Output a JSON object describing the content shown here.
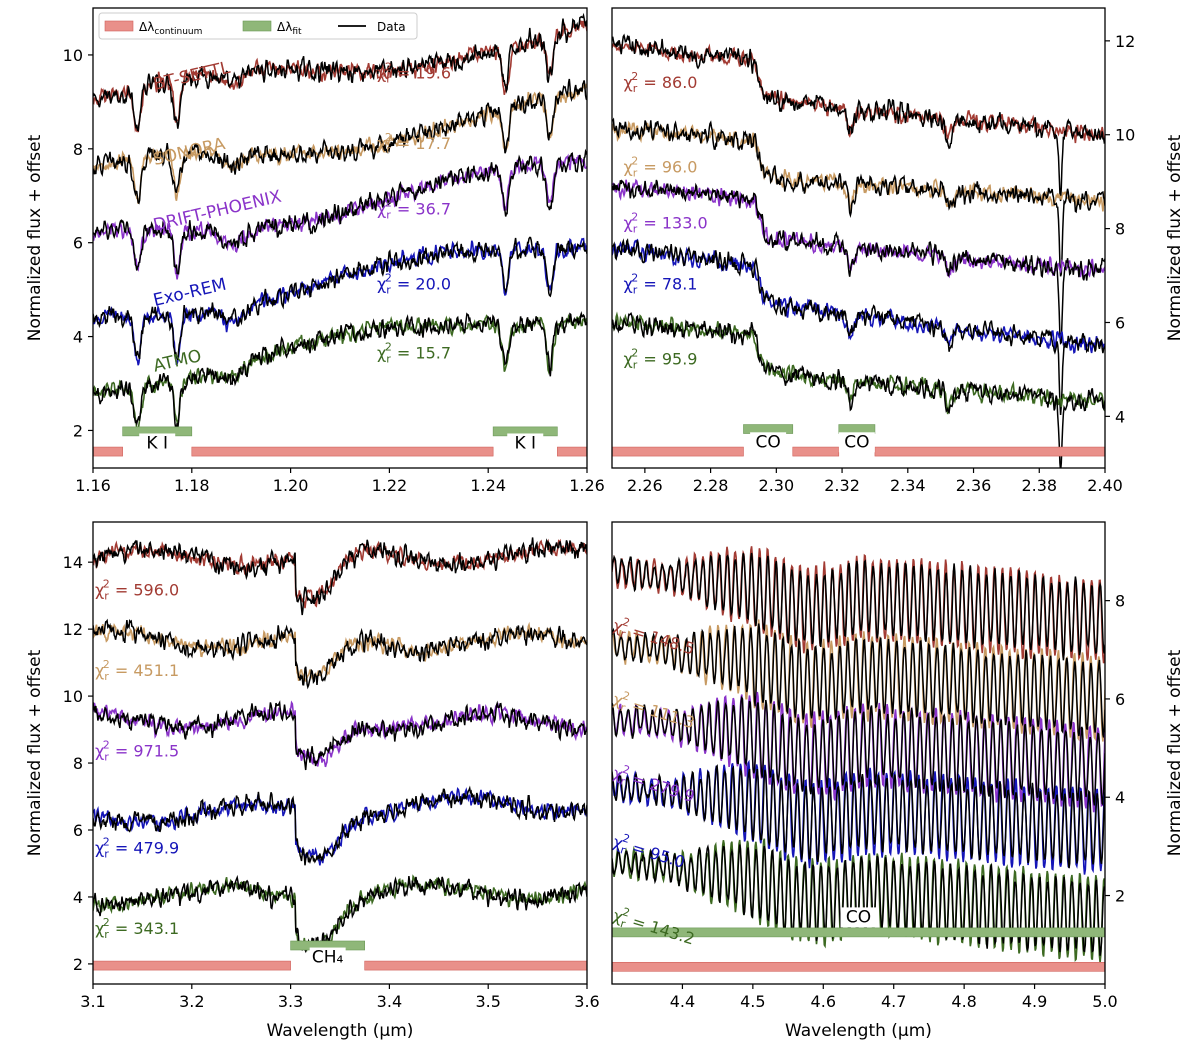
{
  "colors": {
    "data": "#000000",
    "BT-SETTL": "#a23b33",
    "SONORA": "#c79a62",
    "DRIFT-PHOENIX": "#8a33c9",
    "Exo-REM": "#1515b8",
    "ATMO": "#3d6a22",
    "continuum": "#e9908a",
    "fit": "#8fb779"
  },
  "legend": {
    "continuum": "Δλ",
    "continuum_sub": "continuum",
    "fit": "Δλ",
    "fit_sub": "fit",
    "data": "Data"
  },
  "chart_data": [
    {
      "type": "line",
      "panel": "top-left",
      "xlim": [
        1.16,
        1.26
      ],
      "ylim": [
        1.2,
        11.0
      ],
      "xticks": [
        "1.16",
        "1.18",
        "1.20",
        "1.22",
        "1.24",
        "1.26"
      ],
      "yticks": [
        "2",
        "4",
        "6",
        "8",
        "10"
      ],
      "ylabel": "Normalized flux + offset",
      "xlabel": "",
      "y_axis_side": "left",
      "legend_position": "top-left",
      "series": [
        {
          "name": "BT-SETTL",
          "model_label": "BT-SETTL",
          "chi2": "19.6",
          "baseline": [
            9.0,
            10.5
          ]
        },
        {
          "name": "SONORA",
          "model_label": "SONORA",
          "chi2": "17.7",
          "baseline": [
            7.4,
            9.0
          ]
        },
        {
          "name": "DRIFT-PHOENIX",
          "model_label": "DRIFT-PHOENIX",
          "chi2": "36.7",
          "baseline": [
            6.0,
            7.6
          ]
        },
        {
          "name": "Exo-REM",
          "model_label": "Exo-REM",
          "chi2": "20.0",
          "baseline": [
            4.4,
            6.0
          ]
        },
        {
          "name": "ATMO",
          "model_label": "ATMO",
          "chi2": "15.7",
          "baseline": [
            3.0,
            4.6
          ]
        }
      ],
      "absorption_lines": [
        1.169,
        1.177,
        1.2435,
        1.2525
      ],
      "continuum_ranges": [
        [
          1.16,
          1.166
        ],
        [
          1.18,
          1.241
        ],
        [
          1.254,
          1.26
        ]
      ],
      "fit_ranges": [
        [
          1.166,
          1.18
        ],
        [
          1.241,
          1.254
        ]
      ],
      "features": [
        "K I",
        "K I"
      ]
    },
    {
      "type": "line",
      "panel": "top-right",
      "xlim": [
        2.25,
        2.4
      ],
      "ylim": [
        2.9,
        12.7
      ],
      "xticks": [
        "2.26",
        "2.28",
        "2.30",
        "2.32",
        "2.34",
        "2.36",
        "2.38",
        "2.40"
      ],
      "yticks": [
        "4",
        "6",
        "8",
        "10",
        "12"
      ],
      "ylabel": "Normalized flux + offset",
      "xlabel": "",
      "y_axis_side": "right",
      "series": [
        {
          "name": "BT-SETTL",
          "chi2": "86.0",
          "baseline": [
            11.9,
            10.8
          ]
        },
        {
          "name": "SONORA",
          "chi2": "96.0",
          "baseline": [
            10.1,
            9.4
          ]
        },
        {
          "name": "DRIFT-PHOENIX",
          "chi2": "133.0",
          "baseline": [
            8.9,
            7.9
          ]
        },
        {
          "name": "Exo-REM",
          "chi2": "78.1",
          "baseline": [
            7.6,
            6.3
          ]
        },
        {
          "name": "ATMO",
          "chi2": "95.9",
          "baseline": [
            6.0,
            5.1
          ]
        }
      ],
      "bandhead": 2.2935,
      "continuum_ranges": [
        [
          2.25,
          2.29
        ],
        [
          2.305,
          2.319
        ],
        [
          2.33,
          2.4
        ]
      ],
      "fit_ranges": [
        [
          2.29,
          2.305
        ],
        [
          2.319,
          2.33
        ]
      ],
      "features": [
        "CO",
        "CO"
      ]
    },
    {
      "type": "line",
      "panel": "bottom-left",
      "xlim": [
        3.1,
        3.6
      ],
      "ylim": [
        1.4,
        15.2
      ],
      "xticks": [
        "3.1",
        "3.2",
        "3.3",
        "3.4",
        "3.5",
        "3.6"
      ],
      "yticks": [
        "2",
        "4",
        "6",
        "8",
        "10",
        "12",
        "14"
      ],
      "ylabel": "Normalized flux + offset",
      "xlabel": "Wavelength (µm)",
      "y_axis_side": "left",
      "series": [
        {
          "name": "BT-SETTL",
          "chi2": "596.0",
          "baseline": [
            14.1,
            14.2
          ]
        },
        {
          "name": "SONORA",
          "chi2": "451.1",
          "baseline": [
            11.7,
            11.6
          ]
        },
        {
          "name": "DRIFT-PHOENIX",
          "chi2": "971.5",
          "baseline": [
            9.3,
            9.2
          ]
        },
        {
          "name": "Exo-REM",
          "chi2": "479.9",
          "baseline": [
            6.4,
            6.8
          ]
        },
        {
          "name": "ATMO",
          "chi2": "343.1",
          "baseline": [
            4.0,
            4.2
          ]
        }
      ],
      "dip_center": 3.325,
      "continuum_ranges": [
        [
          3.1,
          3.3
        ],
        [
          3.375,
          3.6
        ]
      ],
      "fit_ranges": [
        [
          3.3,
          3.375
        ]
      ],
      "features": [
        "CH₄"
      ]
    },
    {
      "type": "line",
      "panel": "bottom-right",
      "xlim": [
        4.3,
        5.0
      ],
      "ylim": [
        0.2,
        9.6
      ],
      "xticks": [
        "4.4",
        "4.5",
        "4.6",
        "4.7",
        "4.8",
        "4.9",
        "5.0"
      ],
      "yticks": [
        "2",
        "4",
        "6",
        "8"
      ],
      "ylabel": "Normalized flux + offset",
      "xlabel": "Wavelength (µm)",
      "y_axis_side": "right",
      "series": [
        {
          "name": "BT-SETTL",
          "chi2": "148.5",
          "baseline": [
            8.6,
            7.6
          ]
        },
        {
          "name": "SONORA",
          "chi2": "111.3",
          "baseline": [
            7.1,
            6.0
          ]
        },
        {
          "name": "DRIFT-PHOENIX",
          "chi2": "279.9",
          "baseline": [
            5.6,
            4.6
          ]
        },
        {
          "name": "Exo-REM",
          "chi2": "95.0",
          "baseline": [
            4.2,
            3.3
          ]
        },
        {
          "name": "ATMO",
          "chi2": "143.2",
          "baseline": [
            2.7,
            1.5
          ]
        }
      ],
      "continuum_ranges": [
        [
          4.3,
          5.0
        ]
      ],
      "fit_ranges": [
        [
          4.3,
          5.0
        ]
      ],
      "features": [
        "CO"
      ]
    }
  ]
}
